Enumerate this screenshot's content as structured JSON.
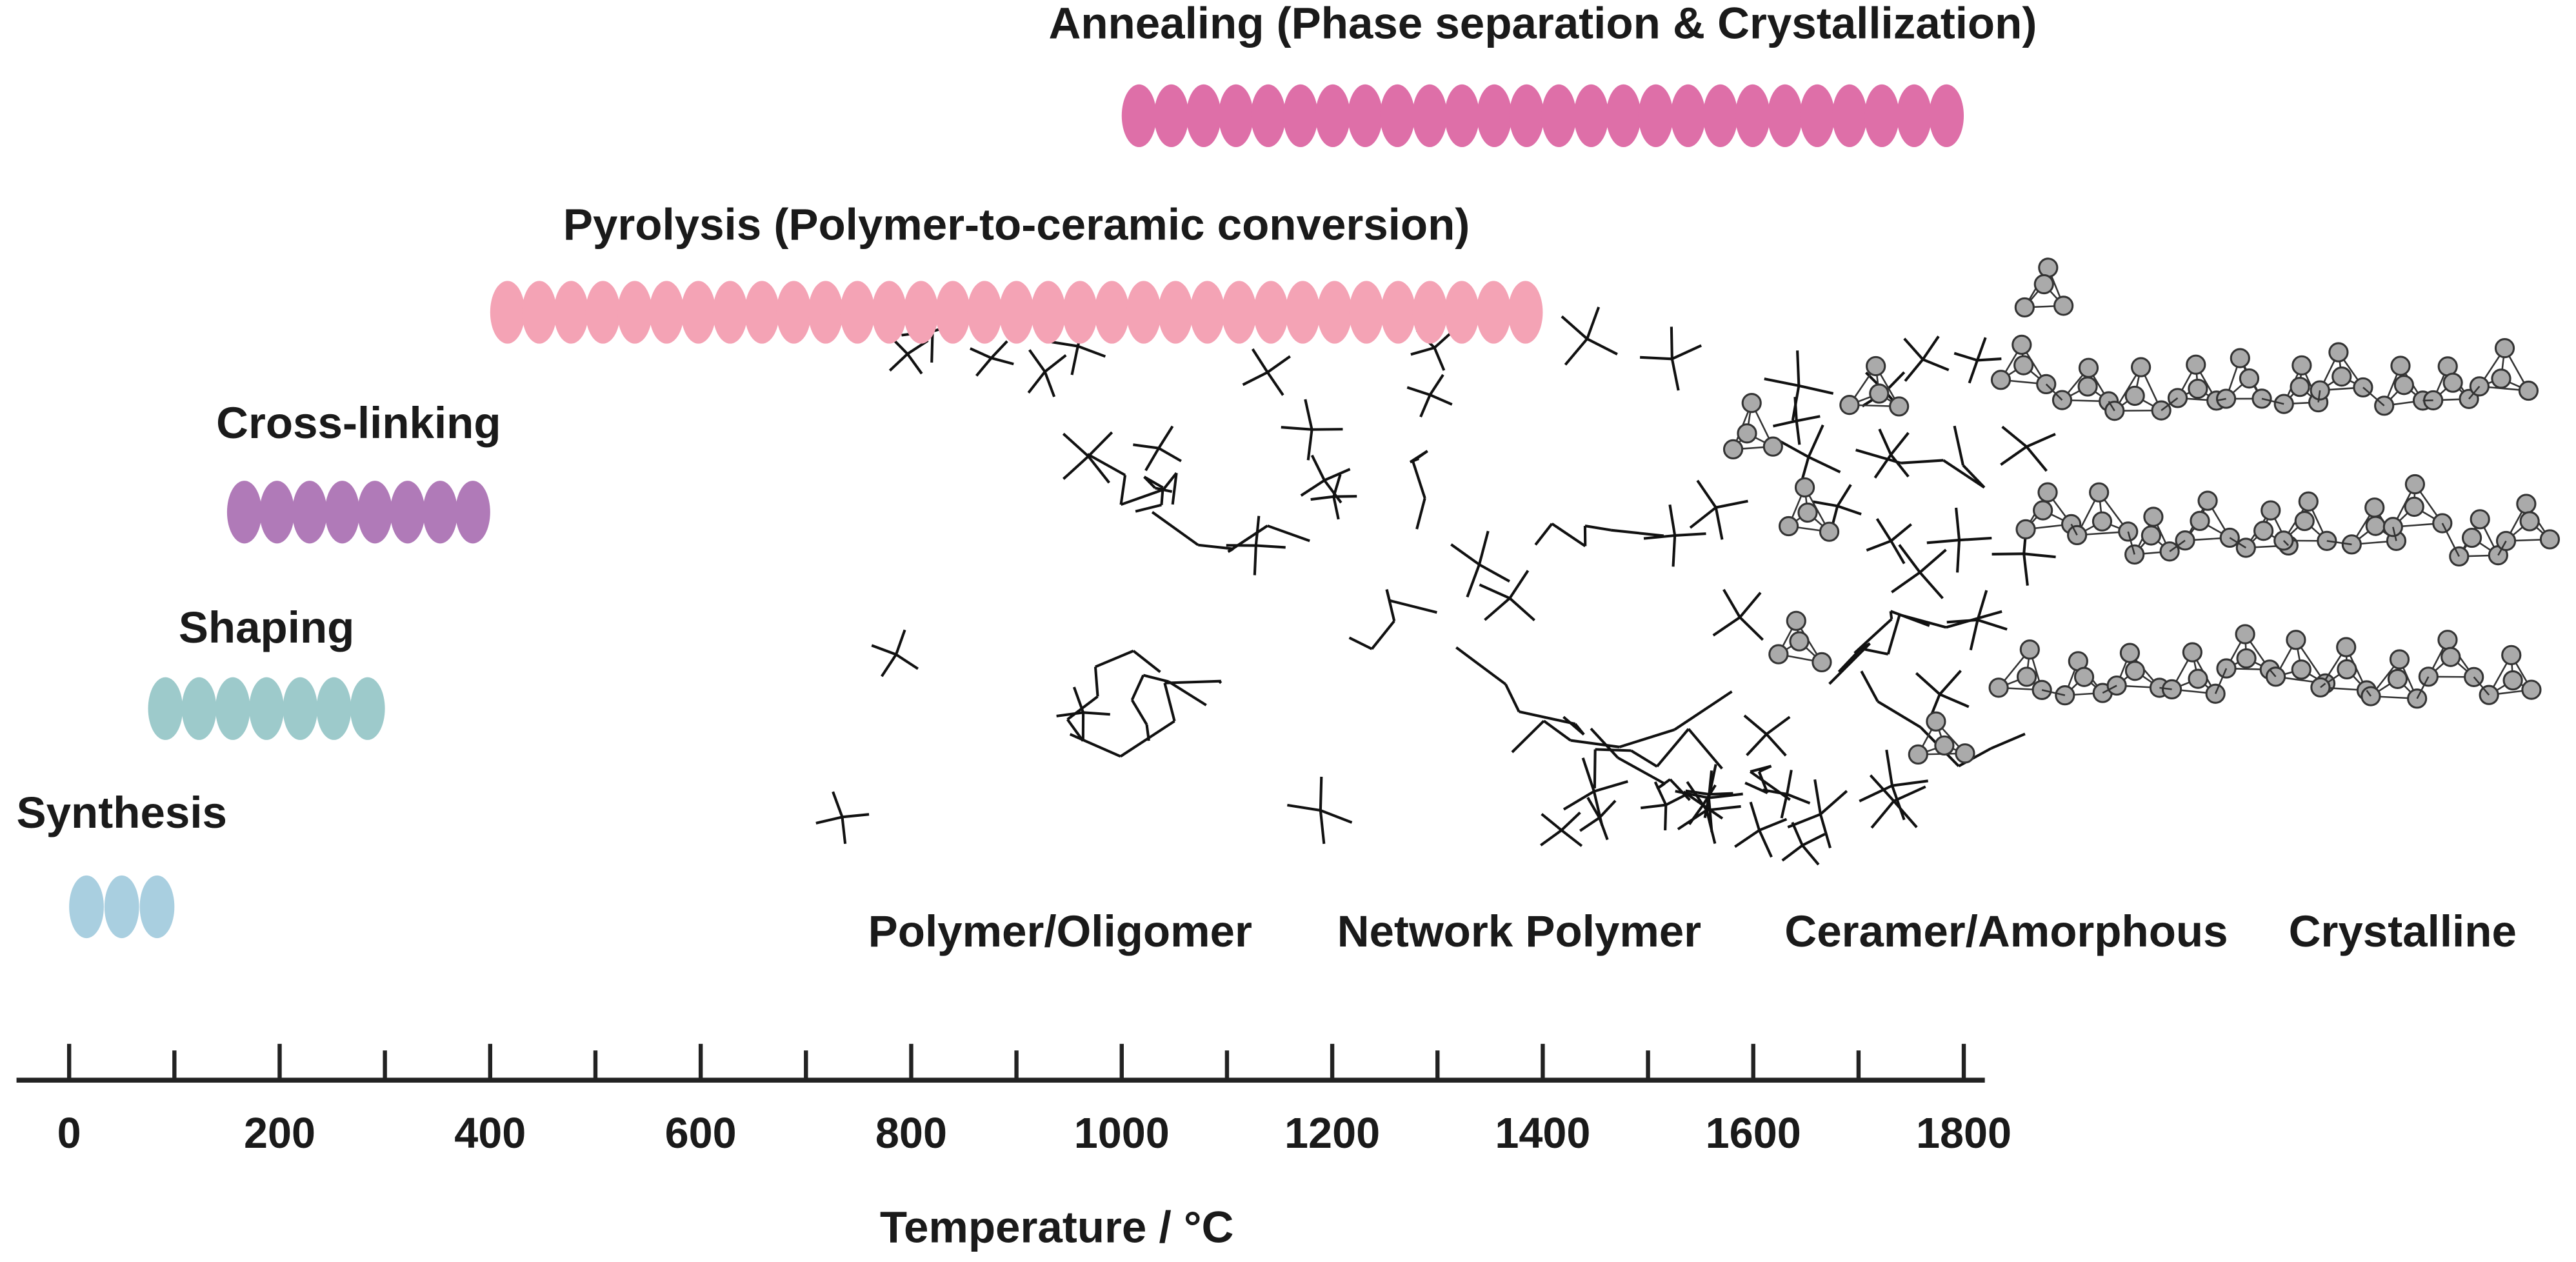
{
  "chart_data": {
    "type": "range",
    "xlabel": "Temperature / °C",
    "xlim": [
      -50,
      1820
    ],
    "xticks": [
      0,
      200,
      400,
      600,
      800,
      1000,
      1200,
      1400,
      1600,
      1800
    ],
    "xminorticks": [
      100,
      300,
      500,
      700,
      900,
      1100,
      1300,
      1500,
      1700
    ],
    "stages": [
      {
        "name": "Synthesis",
        "start": 0,
        "end": 100,
        "color": "#a9cfe0"
      },
      {
        "name": "Shaping",
        "start": 75,
        "end": 300,
        "color": "#9dcacb"
      },
      {
        "name": "Cross-linking",
        "start": 150,
        "end": 400,
        "color": "#b07ab8"
      },
      {
        "name": "Pyrolysis (Polymer-to-ceramic conversion)",
        "start": 400,
        "end": 1400,
        "color": "#f4a3b5"
      },
      {
        "name": "Annealing (Phase separation & Crystallization)",
        "start": 1000,
        "end": 1800,
        "color": "#de6fa8"
      }
    ],
    "structures": [
      "Polymer/Oligomer",
      "Network Polymer",
      "Ceramer/Amorphous",
      "Crystalline"
    ]
  }
}
